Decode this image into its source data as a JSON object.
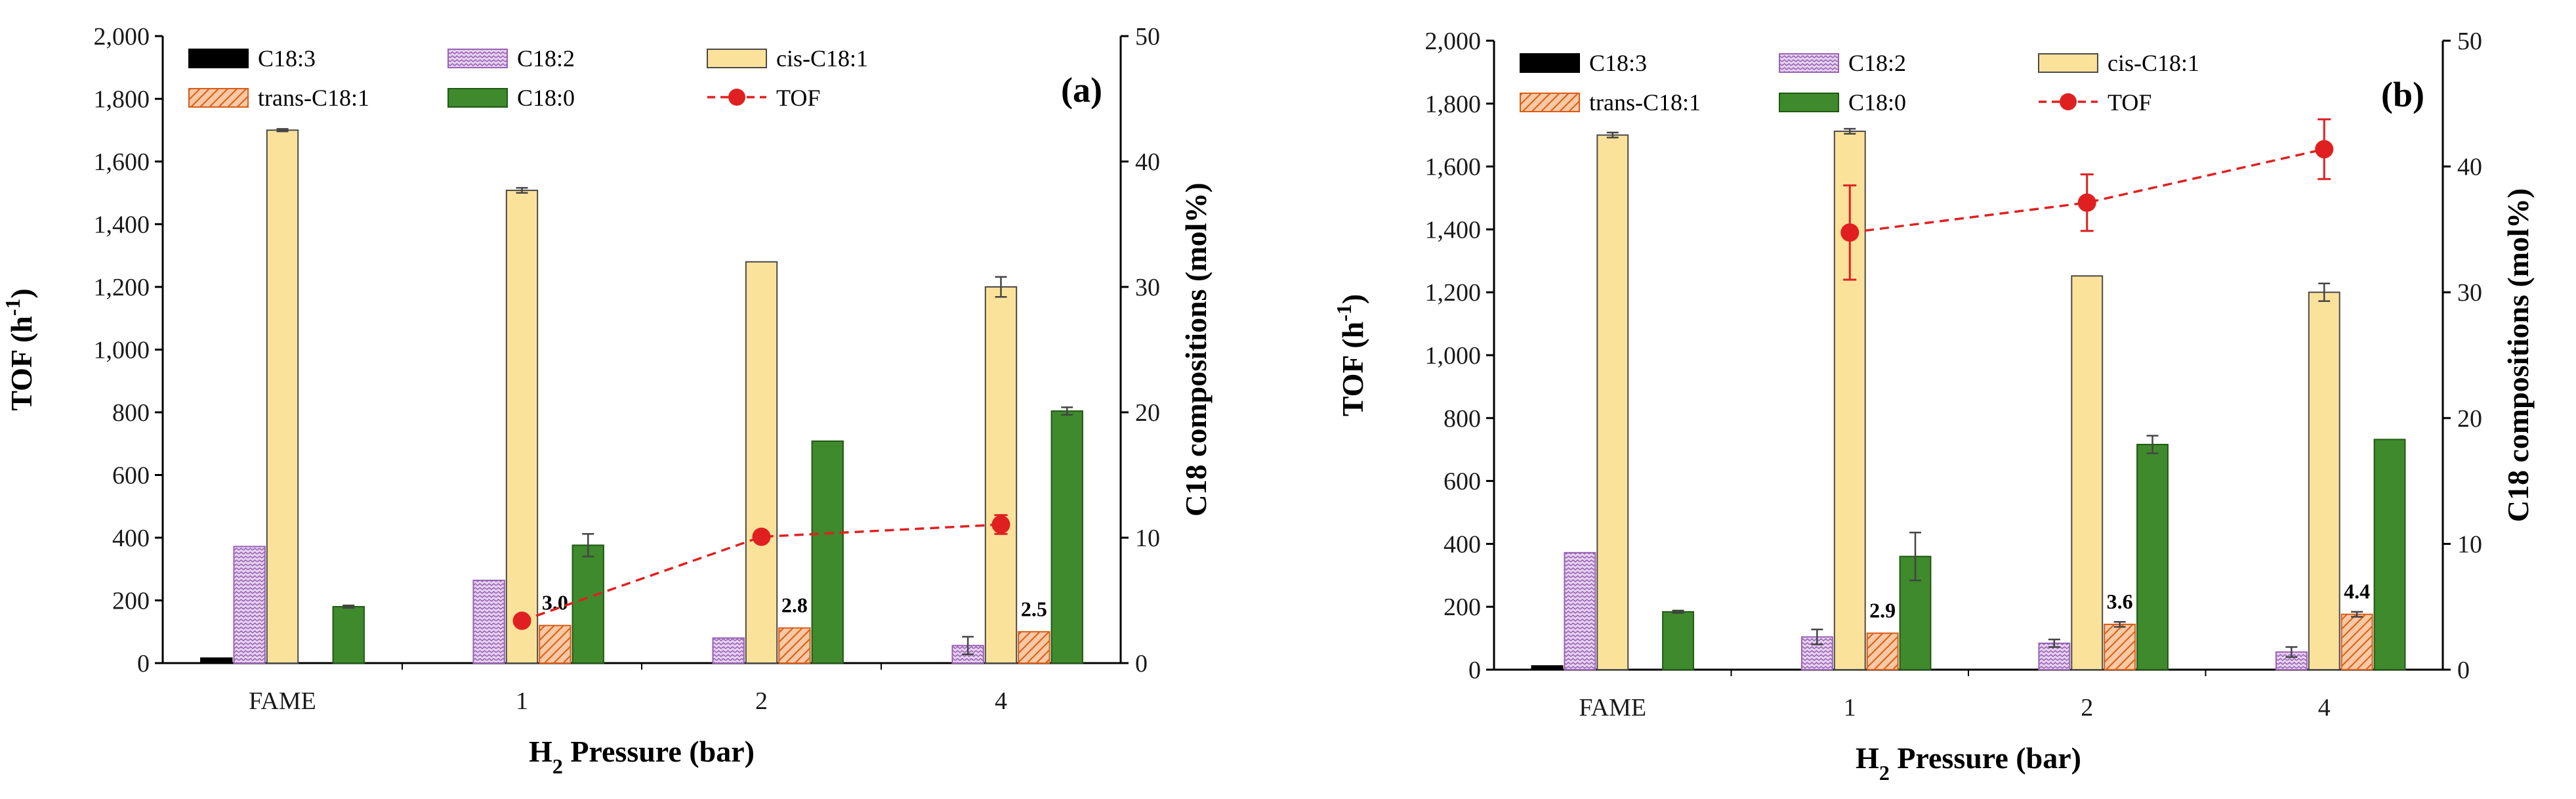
{
  "chart_data": [
    {
      "type": "bar",
      "panel_label": "(a)",
      "xlabel": "H2 Pressure (bar)",
      "xlabel_main": "H",
      "xlabel_sub": "2",
      "xlabel_rest": " Pressure (bar)",
      "ylabel": "TOF (h-1)",
      "ylabel_main": "TOF (h",
      "ylabel_sup": "-1",
      "ylabel_close": ")",
      "y2label": "C18 compositions (mol%)",
      "ylim": [
        0,
        2000
      ],
      "y2lim": [
        0,
        50
      ],
      "yticks": [
        "0",
        "200",
        "400",
        "600",
        "800",
        "1,000",
        "1,200",
        "1,400",
        "1,600",
        "1,800",
        "2,000"
      ],
      "y2ticks": [
        "0",
        "10",
        "20",
        "30",
        "40",
        "50"
      ],
      "categories": [
        "FAME",
        "1",
        "2",
        "4"
      ],
      "series": [
        {
          "name": "C18:3",
          "values": [
            0.4,
            0,
            0,
            0
          ],
          "errors": [
            0,
            0,
            0,
            0
          ]
        },
        {
          "name": "C18:2",
          "values": [
            9.3,
            6.6,
            2.0,
            1.4
          ],
          "errors": [
            0,
            0,
            0,
            0.7
          ]
        },
        {
          "name": "cis-C18:1",
          "values": [
            42.5,
            37.7,
            32.0,
            30.0
          ],
          "errors": [
            0.1,
            0.2,
            0,
            0.8
          ]
        },
        {
          "name": "trans-C18:1",
          "values": [
            0,
            3.0,
            2.8,
            2.5
          ],
          "errors": [
            0,
            0,
            0,
            0
          ]
        },
        {
          "name": "C18:0",
          "values": [
            4.5,
            9.4,
            17.7,
            20.1
          ],
          "errors": [
            0.1,
            0.9,
            0,
            0.3
          ]
        }
      ],
      "tof": {
        "name": "TOF",
        "categories": [
          "1",
          "2",
          "4"
        ],
        "values": [
          135,
          403,
          442
        ],
        "errors": [
          0,
          0,
          30
        ]
      },
      "bar_labels": [
        {
          "category": "1",
          "text": "3.0"
        },
        {
          "category": "2",
          "text": "2.8"
        },
        {
          "category": "4",
          "text": "2.5"
        }
      ]
    },
    {
      "type": "bar",
      "panel_label": "(b)",
      "xlabel": "H2 Pressure (bar)",
      "xlabel_main": "H",
      "xlabel_sub": "2",
      "xlabel_rest": " Pressure (bar)",
      "ylabel": "TOF (h-1)",
      "ylabel_main": "TOF (h",
      "ylabel_sup": "-1",
      "ylabel_close": ")",
      "y2label": "C18 compositions (mol%)",
      "ylim": [
        0,
        2000
      ],
      "y2lim": [
        0,
        50
      ],
      "yticks": [
        "0",
        "200",
        "400",
        "600",
        "800",
        "1,000",
        "1,200",
        "1,400",
        "1,600",
        "1,800",
        "2,000"
      ],
      "y2ticks": [
        "0",
        "10",
        "20",
        "30",
        "40",
        "50"
      ],
      "categories": [
        "FAME",
        "1",
        "2",
        "4"
      ],
      "series": [
        {
          "name": "C18:3",
          "values": [
            0.3,
            0,
            0,
            0
          ],
          "errors": [
            0,
            0,
            0,
            0
          ]
        },
        {
          "name": "C18:2",
          "values": [
            9.3,
            2.6,
            2.1,
            1.4
          ],
          "errors": [
            0,
            0.6,
            0.3,
            0.4
          ]
        },
        {
          "name": "cis-C18:1",
          "values": [
            42.5,
            42.8,
            31.3,
            30.0
          ],
          "errors": [
            0.2,
            0.2,
            0,
            0.7
          ]
        },
        {
          "name": "trans-C18:1",
          "values": [
            0,
            2.9,
            3.6,
            4.4
          ],
          "errors": [
            0,
            0,
            0.2,
            0.2
          ]
        },
        {
          "name": "C18:0",
          "values": [
            4.6,
            9.0,
            17.9,
            18.3
          ],
          "errors": [
            0.1,
            1.9,
            0.7,
            0
          ]
        }
      ],
      "tof": {
        "name": "TOF",
        "categories": [
          "1",
          "2",
          "4"
        ],
        "values": [
          1390,
          1485,
          1655
        ],
        "errors": [
          150,
          90,
          95
        ]
      },
      "bar_labels": [
        {
          "category": "1",
          "text": "2.9"
        },
        {
          "category": "2",
          "text": "3.6"
        },
        {
          "category": "4",
          "text": "4.4"
        }
      ]
    }
  ],
  "legend_order": [
    "C18:3",
    "C18:2",
    "cis-C18:1",
    "trans-C18:1",
    "C18:0",
    "TOF"
  ],
  "colors": {
    "C18:3": "#000000",
    "C18:2_fill": "#e3cdee",
    "C18:2_stroke": "#9a62b5",
    "cis-C18:1": "#fbe29b",
    "trans-C18:1_fill": "#f6b88a",
    "trans-C18:1_stroke": "#d95c16",
    "C18:0": "#3f8a2c",
    "TOF": "#e02020",
    "axis": "#000000",
    "bar_outline": "#4a4a4a"
  }
}
